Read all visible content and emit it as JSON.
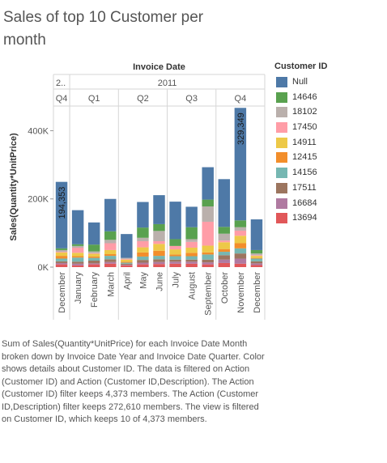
{
  "title": "Sales of top 10 Customer per month",
  "caption": "Sum of Sales(Quantity*UnitPrice) for each Invoice Date Month broken down by Invoice Date Year and Invoice Date Quarter.  Color shows details about Customer ID.  The data is filtered on Action (Customer ID) and Action (Customer ID,Description). The Action (Customer ID) filter keeps 4,373 members. The Action (Customer ID,Description) filter keeps 272,610 members. The view is filtered on Customer ID, which keeps 10 of 4,373 members.",
  "legend": {
    "title": "Customer ID",
    "items": [
      {
        "label": "Null",
        "color": "#4e79a7"
      },
      {
        "label": "14646",
        "color": "#59a14f"
      },
      {
        "label": "18102",
        "color": "#bab0ac"
      },
      {
        "label": "17450",
        "color": "#ff9da7"
      },
      {
        "label": "14911",
        "color": "#edc948"
      },
      {
        "label": "12415",
        "color": "#f28e2b"
      },
      {
        "label": "14156",
        "color": "#76b7b2"
      },
      {
        "label": "17511",
        "color": "#9c755f"
      },
      {
        "label": "16684",
        "color": "#b07aa1"
      },
      {
        "label": "13694",
        "color": "#e15759"
      }
    ]
  },
  "chart_data": {
    "type": "bar",
    "stacked": true,
    "header_title": "Invoice Date",
    "ylabel": "Sales(Quantity*UnitPrice)",
    "ylim": [
      0,
      470000
    ],
    "yticks": [
      0,
      200000,
      400000
    ],
    "ytick_labels": [
      "0K",
      "200K",
      "400K"
    ],
    "years": [
      {
        "label": "2..",
        "span": 1
      },
      {
        "label": "2011",
        "span": 12
      }
    ],
    "quarters": [
      {
        "label": "Q4",
        "span": 1
      },
      {
        "label": "Q1",
        "span": 3
      },
      {
        "label": "Q2",
        "span": 3
      },
      {
        "label": "Q3",
        "span": 3
      },
      {
        "label": "Q4",
        "span": 3
      }
    ],
    "categories": [
      "December",
      "January",
      "February",
      "March",
      "April",
      "May",
      "June",
      "July",
      "August",
      "September",
      "October",
      "November",
      "December"
    ],
    "series": [
      {
        "name": "13694",
        "color": "#e15759",
        "values": [
          8000,
          5000,
          8000,
          10000,
          5000,
          8000,
          9000,
          10000,
          10000,
          8000,
          12000,
          10000,
          6000
        ]
      },
      {
        "name": "16684",
        "color": "#b07aa1",
        "values": [
          4000,
          5000,
          3000,
          5000,
          2000,
          5000,
          6000,
          6000,
          6000,
          6000,
          10000,
          15000,
          5000
        ]
      },
      {
        "name": "17511",
        "color": "#9c755f",
        "values": [
          5000,
          6000,
          8000,
          8000,
          3000,
          8000,
          8000,
          6000,
          6000,
          8000,
          13000,
          15000,
          6000
        ]
      },
      {
        "name": "14156",
        "color": "#76b7b2",
        "values": [
          8000,
          12000,
          8000,
          10000,
          3000,
          10000,
          10000,
          10000,
          10000,
          15000,
          10000,
          15000,
          8000
        ]
      },
      {
        "name": "12415",
        "color": "#f28e2b",
        "values": [
          8000,
          4000,
          4000,
          5000,
          3000,
          12000,
          15000,
          5000,
          10000,
          6000,
          8000,
          15000,
          2000
        ]
      },
      {
        "name": "14911",
        "color": "#edc948",
        "values": [
          10000,
          10000,
          8000,
          12000,
          6000,
          15000,
          20000,
          15000,
          15000,
          20000,
          20000,
          22000,
          6000
        ]
      },
      {
        "name": "17450",
        "color": "#ff9da7",
        "values": [
          2000,
          15000,
          2000,
          20000,
          2000,
          18000,
          8000,
          10000,
          17000,
          70000,
          5000,
          15000,
          2000
        ]
      },
      {
        "name": "18102",
        "color": "#bab0ac",
        "values": [
          5000,
          5000,
          5000,
          10000,
          3000,
          10000,
          30000,
          0,
          8000,
          45000,
          20000,
          10000,
          5000
        ]
      },
      {
        "name": "14646",
        "color": "#59a14f",
        "values": [
          5000,
          5000,
          20000,
          25000,
          0,
          30000,
          20000,
          20000,
          35000,
          20000,
          20000,
          20000,
          10000
        ]
      },
      {
        "name": "Null",
        "color": "#4e79a7",
        "values": [
          195000,
          100000,
          65000,
          95000,
          70000,
          75000,
          85000,
          110000,
          60000,
          95000,
          140000,
          330000,
          90000
        ]
      }
    ],
    "data_labels": [
      {
        "category_index": 0,
        "series": "Null",
        "text": "194,353"
      },
      {
        "category_index": 11,
        "series": "Null",
        "text": "329,349"
      }
    ],
    "grid": false,
    "legend_position": "right"
  }
}
